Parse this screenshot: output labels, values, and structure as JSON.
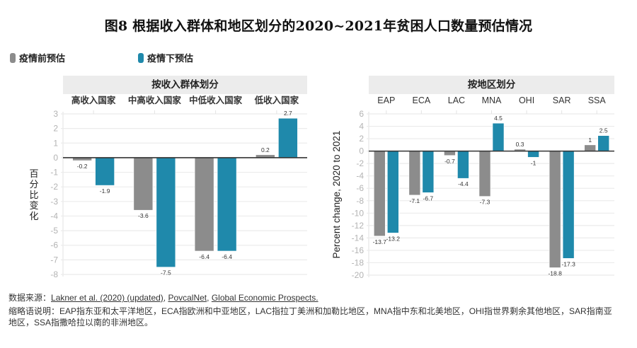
{
  "title": "图8  根据收入群体和地区划分的2020~2021年贫困人口数量预估情况",
  "legend": [
    {
      "label": "疫情前预估",
      "color": "#8c8c8c"
    },
    {
      "label": "疫情下预估",
      "color": "#1f89ab"
    }
  ],
  "chart_data": [
    {
      "type": "bar",
      "title": "按收入群体划分",
      "categories": [
        "高收入国家",
        "中高收入国家",
        "中低收入国家",
        "低收入国家"
      ],
      "series": [
        {
          "name": "疫情前预估",
          "color": "#8c8c8c",
          "values": [
            -0.2,
            -3.6,
            -6.4,
            0.2
          ]
        },
        {
          "name": "疫情下预估",
          "color": "#1f89ab",
          "values": [
            -1.9,
            -7.5,
            -6.4,
            2.7
          ]
        }
      ],
      "ylabel": "百分比变化",
      "xlabel": "",
      "ylim": [
        -8,
        3
      ],
      "yticks": [
        3,
        2,
        1,
        0,
        -1,
        -2,
        -3,
        -4,
        -5,
        -6,
        -7,
        -8
      ],
      "grid": true,
      "legend": "top-left"
    },
    {
      "type": "bar",
      "title": "按地区划分",
      "categories": [
        "EAP",
        "ECA",
        "LAC",
        "MNA",
        "OHI",
        "SAR",
        "SSA"
      ],
      "series": [
        {
          "name": "疫情前预估",
          "color": "#8c8c8c",
          "values": [
            -13.7,
            -7.1,
            -0.7,
            -7.3,
            0.3,
            -18.8,
            1
          ]
        },
        {
          "name": "疫情下预估",
          "color": "#1f89ab",
          "values": [
            -13.2,
            -6.7,
            -4.4,
            4.5,
            -1,
            -17.3,
            2.5
          ]
        }
      ],
      "ylabel": "Percent change, 2020 to 2021",
      "xlabel": "",
      "ylim": [
        -20,
        6
      ],
      "yticks": [
        6,
        4,
        2,
        0,
        -2,
        -4,
        -6,
        -8,
        -10,
        -12,
        -14,
        -16,
        -18,
        -20
      ],
      "grid": true,
      "legend": "top-left"
    }
  ],
  "footer": {
    "source_prefix": "数据来源：",
    "sources": [
      "Lakner et al. (2020) (updated)",
      "PovcalNet",
      "Global Economic Prospects."
    ],
    "notes": "缩略语说明：EAP指东亚和太平洋地区，ECA指欧洲和中亚地区，LAC指拉丁美洲和加勒比地区，MNA指中东和北美地区，OHI指世界剩余其他地区，SAR指南亚地区，SSA指撒哈拉以南的非洲地区。"
  }
}
